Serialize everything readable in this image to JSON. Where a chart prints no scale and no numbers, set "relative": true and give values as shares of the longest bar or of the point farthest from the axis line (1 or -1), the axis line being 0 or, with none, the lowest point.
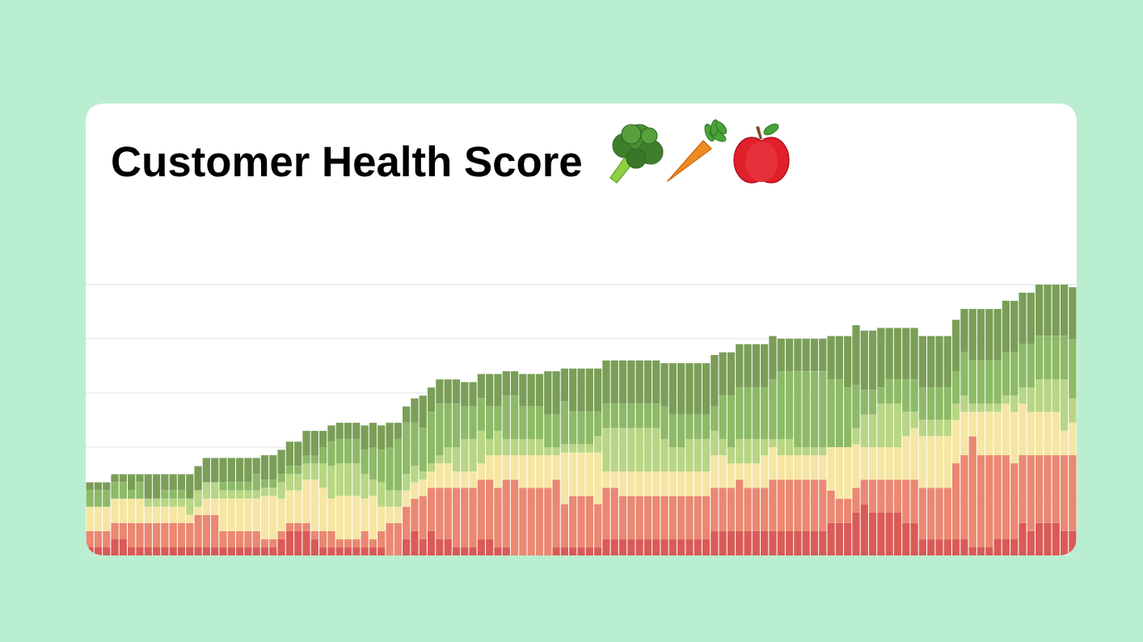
{
  "chart_data": {
    "type": "bar",
    "title": "Customer Health Score",
    "categories": [
      null,
      null,
      null,
      null,
      null,
      null,
      null,
      null,
      null,
      null,
      null,
      null,
      null,
      null,
      null,
      null,
      null,
      null,
      null,
      null,
      null,
      null,
      null,
      null,
      null,
      null,
      null,
      null,
      null,
      null,
      null,
      null,
      null,
      null,
      null,
      null,
      null,
      null,
      null,
      null,
      null,
      null,
      null,
      null,
      null,
      null,
      null,
      null,
      null,
      null,
      null,
      null,
      null,
      null,
      null,
      null,
      null,
      null,
      null,
      null,
      null,
      null,
      null,
      null,
      null,
      null,
      null,
      null,
      null,
      null,
      null,
      null,
      null,
      null,
      null,
      null,
      null,
      null,
      null,
      null,
      null,
      null,
      null,
      null,
      null,
      null,
      null,
      null,
      null,
      null,
      null,
      null,
      null,
      null,
      null,
      null,
      null,
      null,
      null,
      null,
      null,
      null,
      null,
      null,
      null,
      null,
      null,
      null,
      null,
      null,
      null,
      null,
      null,
      null,
      null,
      null,
      null,
      null,
      null
    ],
    "stacked": true,
    "relative": true,
    "grid": "y",
    "series": [
      {
        "color": "#d95b57",
        "values": [
          0.03,
          0.03,
          0.03,
          0.06,
          0.06,
          0.03,
          0.03,
          0.03,
          0.03,
          0.03,
          0.03,
          0.03,
          0.03,
          0.03,
          0.03,
          0.03,
          0.03,
          0.03,
          0.03,
          0.03,
          0.03,
          0.03,
          0.03,
          0.06,
          0.09,
          0.09,
          0.09,
          0.06,
          0.03,
          0.03,
          0.03,
          0.03,
          0.03,
          0.03,
          0.03,
          0.03,
          0,
          0,
          0.06,
          0.09,
          0.06,
          0.09,
          0.06,
          0.06,
          0.03,
          0.03,
          0.03,
          0.06,
          0.06,
          0.03,
          0.03,
          0,
          0,
          0,
          0,
          0,
          0.03,
          0.03,
          0.03,
          0.03,
          0.03,
          0.03,
          0.06,
          0.06,
          0.06,
          0.06,
          0.06,
          0.06,
          0.06,
          0.06,
          0.06,
          0.06,
          0.06,
          0.06,
          0.06,
          0.09,
          0.09,
          0.09,
          0.09,
          0.09,
          0.09,
          0.09,
          0.09,
          0.09,
          0.09,
          0.09,
          0.09,
          0.09,
          0.09,
          0.12,
          0.12,
          0.12,
          0.16,
          0.19,
          0.16,
          0.16,
          0.16,
          0.16,
          0.12,
          0.12,
          0.06,
          0.06,
          0.06,
          0.06,
          0.06,
          0.06,
          0.03,
          0.03,
          0.03,
          0.06,
          0.06,
          0.06,
          0.12,
          0.09,
          0.12,
          0.12,
          0.12,
          0.09,
          0.09
        ]
      },
      {
        "color": "#ea8872",
        "values": [
          0.06,
          0.06,
          0.06,
          0.06,
          0.06,
          0.09,
          0.09,
          0.09,
          0.09,
          0.09,
          0.09,
          0.09,
          0.09,
          0.12,
          0.12,
          0.12,
          0.06,
          0.06,
          0.06,
          0.06,
          0.06,
          0.03,
          0.03,
          0.03,
          0.03,
          0.03,
          0.03,
          0.03,
          0.06,
          0.06,
          0.03,
          0.03,
          0.03,
          0.06,
          0.03,
          0.06,
          0.12,
          0.12,
          0.12,
          0.12,
          0.16,
          0.16,
          0.19,
          0.19,
          0.22,
          0.22,
          0.22,
          0.22,
          0.22,
          0.22,
          0.25,
          0.28,
          0.25,
          0.25,
          0.25,
          0.25,
          0.25,
          0.16,
          0.19,
          0.19,
          0.19,
          0.16,
          0.19,
          0.19,
          0.16,
          0.16,
          0.16,
          0.16,
          0.16,
          0.16,
          0.16,
          0.16,
          0.16,
          0.16,
          0.16,
          0.16,
          0.16,
          0.16,
          0.19,
          0.16,
          0.16,
          0.16,
          0.19,
          0.19,
          0.19,
          0.19,
          0.19,
          0.19,
          0.19,
          0.12,
          0.09,
          0.09,
          0.09,
          0.09,
          0.12,
          0.12,
          0.12,
          0.12,
          0.16,
          0.16,
          0.19,
          0.19,
          0.19,
          0.19,
          0.28,
          0.31,
          0.41,
          0.34,
          0.34,
          0.31,
          0.31,
          0.28,
          0.25,
          0.28,
          0.25,
          0.25,
          0.25,
          0.28,
          0.28
        ]
      },
      {
        "color": "#f6e6a3",
        "values": [
          0.09,
          0.09,
          0.09,
          0.09,
          0.09,
          0.09,
          0.09,
          0.06,
          0.06,
          0.06,
          0.06,
          0.06,
          0.03,
          0.03,
          0.06,
          0.06,
          0.12,
          0.12,
          0.12,
          0.12,
          0.12,
          0.16,
          0.16,
          0.12,
          0.12,
          0.12,
          0.16,
          0.19,
          0.16,
          0.12,
          0.16,
          0.16,
          0.16,
          0.12,
          0.16,
          0.09,
          0.06,
          0.06,
          0.06,
          0.06,
          0.06,
          0.06,
          0.09,
          0.09,
          0.06,
          0.06,
          0.06,
          0.06,
          0.09,
          0.12,
          0.09,
          0.09,
          0.12,
          0.12,
          0.12,
          0.12,
          0.09,
          0.19,
          0.16,
          0.16,
          0.16,
          0.19,
          0.06,
          0.06,
          0.09,
          0.09,
          0.09,
          0.09,
          0.09,
          0.09,
          0.09,
          0.09,
          0.09,
          0.09,
          0.09,
          0.12,
          0.12,
          0.09,
          0.06,
          0.09,
          0.09,
          0.12,
          0.12,
          0.09,
          0.09,
          0.09,
          0.09,
          0.09,
          0.09,
          0.16,
          0.19,
          0.19,
          0.16,
          0.12,
          0.12,
          0.12,
          0.12,
          0.12,
          0.16,
          0.19,
          0.19,
          0.19,
          0.19,
          0.19,
          0.16,
          0.16,
          0.09,
          0.16,
          0.16,
          0.16,
          0.19,
          0.19,
          0.19,
          0.16,
          0.16,
          0.16,
          0.16,
          0.09,
          0.12
        ]
      },
      {
        "color": "#b8d683",
        "values": [
          0,
          0,
          0,
          0,
          0,
          0,
          0,
          0.03,
          0.03,
          0.03,
          0.03,
          0.03,
          0.06,
          0.06,
          0.06,
          0.06,
          0.03,
          0.03,
          0.03,
          0.03,
          0.03,
          0.03,
          0.03,
          0.06,
          0.06,
          0.06,
          0.06,
          0.06,
          0.09,
          0.12,
          0.12,
          0.12,
          0.12,
          0.09,
          0.06,
          0.09,
          0.06,
          0.06,
          0.06,
          0.06,
          0.03,
          0.03,
          0.03,
          0.06,
          0.09,
          0.12,
          0.12,
          0.12,
          0.06,
          0.09,
          0.06,
          0.06,
          0.06,
          0.06,
          0.06,
          0.03,
          0.03,
          0.03,
          0.03,
          0.03,
          0.03,
          0.06,
          0.16,
          0.16,
          0.16,
          0.16,
          0.16,
          0.16,
          0.16,
          0.12,
          0.09,
          0.09,
          0.12,
          0.12,
          0.12,
          0.09,
          0.06,
          0.06,
          0.09,
          0.09,
          0.09,
          0.06,
          0.03,
          0.06,
          0.06,
          0.03,
          0.03,
          0.03,
          0.03,
          0,
          0,
          0,
          0.06,
          0.12,
          0.12,
          0.16,
          0.16,
          0.16,
          0.09,
          0.06,
          0.06,
          0.06,
          0.06,
          0.06,
          0.06,
          0.06,
          0.03,
          0.03,
          0.03,
          0.03,
          0.03,
          0.06,
          0.06,
          0.09,
          0.12,
          0.12,
          0.12,
          0.19,
          0.09
        ]
      },
      {
        "color": "#8dba67",
        "values": [
          0.06,
          0.06,
          0.06,
          0.06,
          0.06,
          0.03,
          0.06,
          0,
          0,
          0.03,
          0.03,
          0.03,
          0,
          0,
          0,
          0,
          0.03,
          0.03,
          0.03,
          0.03,
          0.06,
          0.03,
          0.03,
          0.03,
          0.03,
          0.03,
          0.03,
          0.03,
          0.06,
          0.09,
          0.09,
          0.09,
          0.09,
          0.09,
          0.12,
          0.12,
          0.16,
          0.19,
          0.19,
          0.16,
          0.16,
          0.19,
          0.19,
          0.16,
          0.16,
          0.12,
          0.12,
          0.12,
          0.12,
          0.09,
          0.16,
          0.16,
          0.12,
          0.12,
          0.12,
          0.12,
          0.12,
          0.16,
          0.12,
          0.12,
          0.12,
          0.09,
          0.09,
          0.09,
          0.09,
          0.09,
          0.09,
          0.09,
          0.09,
          0.12,
          0.12,
          0.12,
          0.09,
          0.09,
          0.09,
          0.09,
          0.16,
          0.19,
          0.19,
          0.19,
          0.19,
          0.19,
          0.22,
          0.25,
          0.25,
          0.28,
          0.28,
          0.28,
          0.28,
          0.25,
          0.25,
          0.22,
          0.16,
          0.09,
          0.09,
          0.06,
          0.09,
          0.09,
          0.12,
          0.12,
          0.12,
          0.12,
          0.12,
          0.12,
          0.12,
          0.16,
          0.16,
          0.16,
          0.16,
          0.16,
          0.16,
          0.16,
          0.16,
          0.16,
          0.16,
          0.16,
          0.16,
          0.16,
          0.22
        ]
      },
      {
        "color": "#7a9e57",
        "values": [
          0.03,
          0.03,
          0.03,
          0.03,
          0.03,
          0.06,
          0.03,
          0.09,
          0.09,
          0.06,
          0.06,
          0.06,
          0.09,
          0.09,
          0.09,
          0.09,
          0.09,
          0.09,
          0.09,
          0.09,
          0.06,
          0.09,
          0.09,
          0.09,
          0.09,
          0.09,
          0.09,
          0.09,
          0.06,
          0.06,
          0.06,
          0.06,
          0.06,
          0.09,
          0.09,
          0.09,
          0.09,
          0.06,
          0.06,
          0.09,
          0.12,
          0.09,
          0.09,
          0.09,
          0.09,
          0.09,
          0.09,
          0.09,
          0.12,
          0.12,
          0.09,
          0.09,
          0.12,
          0.12,
          0.12,
          0.16,
          0.16,
          0.12,
          0.16,
          0.16,
          0.16,
          0.16,
          0.16,
          0.16,
          0.16,
          0.16,
          0.16,
          0.16,
          0.16,
          0.16,
          0.19,
          0.19,
          0.19,
          0.19,
          0.19,
          0.19,
          0.16,
          0.16,
          0.16,
          0.16,
          0.16,
          0.16,
          0.16,
          0.12,
          0.12,
          0.12,
          0.12,
          0.12,
          0.12,
          0.16,
          0.16,
          0.19,
          0.22,
          0.22,
          0.22,
          0.22,
          0.19,
          0.19,
          0.19,
          0.19,
          0.19,
          0.19,
          0.19,
          0.19,
          0.19,
          0.16,
          0.19,
          0.19,
          0.19,
          0.19,
          0.19,
          0.19,
          0.19,
          0.19,
          0.19,
          0.19,
          0.19,
          0.19,
          0.19
        ]
      }
    ]
  }
}
